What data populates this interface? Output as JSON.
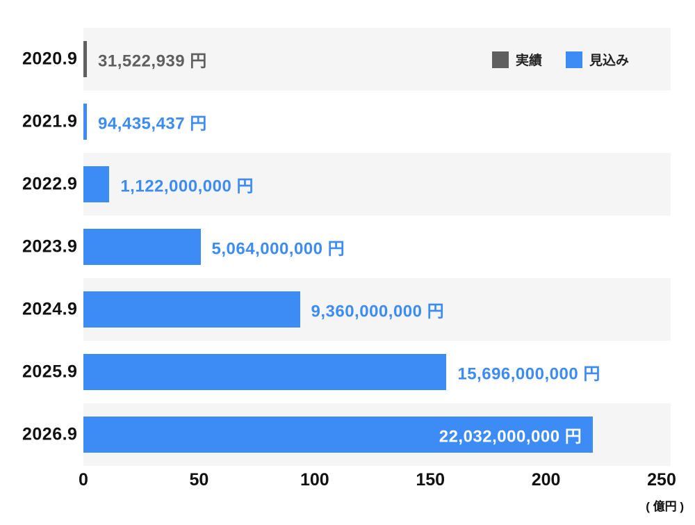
{
  "chart_data": {
    "type": "bar",
    "orientation": "horizontal",
    "title": "",
    "xlabel": "",
    "ylabel": "",
    "unit_label": "( 億円 )",
    "xlim": [
      0,
      250
    ],
    "x_ticks": [
      "0",
      "50",
      "100",
      "150",
      "200",
      "250"
    ],
    "grid": false,
    "legend_position": "top-right",
    "legend": [
      {
        "label": "実績",
        "color": "#5f5f5f"
      },
      {
        "label": "見込み",
        "color": "#3d8bf5"
      }
    ],
    "colors": {
      "forecast_blue": "#3d8bf5",
      "actual_gray": "#5f5f5f",
      "stripe": "#f5f5f5",
      "inside_label": "#ffffff"
    },
    "rows": [
      {
        "category": "2020.9",
        "value_label": "31,522,939 円",
        "value_oku": 0.315,
        "series": "実績",
        "color": "#5f5f5f",
        "label_color": "#5f5f5f",
        "label_inside": false
      },
      {
        "category": "2021.9",
        "value_label": "94,435,437 円",
        "value_oku": 0.944,
        "series": "見込み",
        "color": "#3d8bf5",
        "label_color": "#3d8bf5",
        "label_inside": false
      },
      {
        "category": "2022.9",
        "value_label": "1,122,000,000 円",
        "value_oku": 11.22,
        "series": "見込み",
        "color": "#3d8bf5",
        "label_color": "#3d8bf5",
        "label_inside": false
      },
      {
        "category": "2023.9",
        "value_label": "5,064,000,000 円",
        "value_oku": 50.64,
        "series": "見込み",
        "color": "#3d8bf5",
        "label_color": "#3d8bf5",
        "label_inside": false
      },
      {
        "category": "2024.9",
        "value_label": "9,360,000,000 円",
        "value_oku": 93.6,
        "series": "見込み",
        "color": "#3d8bf5",
        "label_color": "#3d8bf5",
        "label_inside": false
      },
      {
        "category": "2025.9",
        "value_label": "15,696,000,000 円",
        "value_oku": 156.96,
        "series": "見込み",
        "color": "#3d8bf5",
        "label_color": "#3d8bf5",
        "label_inside": false
      },
      {
        "category": "2026.9",
        "value_label": "22,032,000,000 円",
        "value_oku": 220.32,
        "series": "見込み",
        "color": "#3d8bf5",
        "label_color": "#ffffff",
        "label_inside": true
      }
    ]
  }
}
